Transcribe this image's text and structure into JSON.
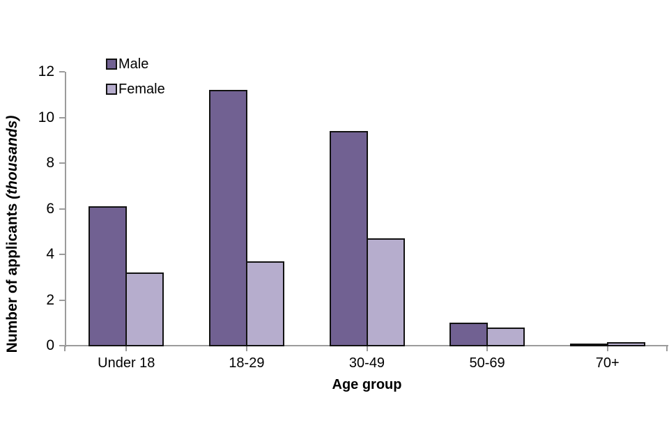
{
  "chart_data": {
    "type": "bar",
    "title": "",
    "categories": [
      "Under 18",
      "18-29",
      "30-49",
      "50-69",
      "70+"
    ],
    "series": [
      {
        "name": "Male",
        "color": "#716192",
        "values": [
          6.1,
          11.2,
          9.4,
          1.0,
          0.1
        ]
      },
      {
        "name": "Female",
        "color": "#b6adcd",
        "values": [
          3.2,
          3.7,
          4.7,
          0.8,
          0.15
        ]
      }
    ],
    "xlabel": "Age group",
    "ylabel": "Number of applicants (thousands)",
    "ylabel_main": "Number of applicants",
    "ylabel_note": "(thousands)",
    "ylim": [
      0,
      12
    ],
    "yticks": [
      0,
      2,
      4,
      6,
      8,
      10,
      12
    ],
    "legend_position": "top-left-inside",
    "grid": "off",
    "bar_border_color": "#111111",
    "axis_color": "#9b9b9b"
  }
}
